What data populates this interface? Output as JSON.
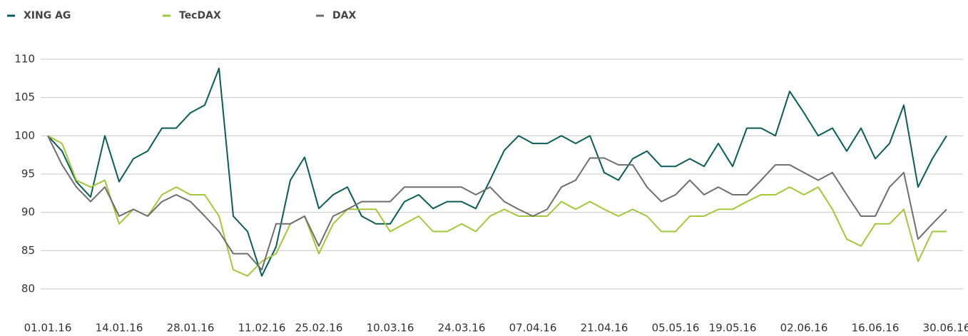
{
  "chart_data": {
    "type": "line",
    "categories": [
      "01.01.16",
      null,
      null,
      null,
      null,
      "14.01.16",
      null,
      null,
      null,
      null,
      "28.01.16",
      null,
      null,
      null,
      null,
      "11.02.16",
      null,
      null,
      null,
      "25.02.16",
      null,
      null,
      null,
      null,
      "10.03.16",
      null,
      null,
      null,
      null,
      "24.03.16",
      null,
      null,
      null,
      null,
      "07.04.16",
      null,
      null,
      null,
      null,
      "21.04.16",
      null,
      null,
      null,
      null,
      "05.05.16",
      null,
      null,
      null,
      "19.05.16",
      null,
      null,
      null,
      null,
      "02.06.16",
      null,
      null,
      null,
      null,
      "16.06.16",
      null,
      null,
      null,
      null,
      "30.06.16"
    ],
    "series": [
      {
        "name": "XING AG",
        "color": "#0b5c58",
        "values": [
          100,
          98,
          94,
          92,
          100,
          94,
          97,
          98,
          101,
          101,
          103,
          104,
          108.8,
          89.5,
          87.5,
          81.7,
          85.5,
          94.2,
          97.2,
          90.5,
          92.3,
          93.3,
          89.5,
          88.5,
          88.5,
          91.4,
          92.3,
          90.5,
          91.4,
          91.4,
          90.5,
          94.2,
          98.1,
          100,
          99,
          99,
          100,
          99,
          100,
          95.2,
          94.2,
          97,
          98,
          96,
          96,
          97,
          96,
          99,
          96,
          101,
          101,
          100,
          105.8,
          103,
          100,
          101,
          98,
          101,
          97,
          99,
          104,
          93.3,
          97,
          100
        ]
      },
      {
        "name": "TecDAX",
        "color": "#a2c73b",
        "values": [
          100,
          99,
          94.2,
          93.3,
          94.2,
          88.5,
          90.4,
          89.5,
          92.3,
          93.3,
          92.3,
          92.3,
          89.5,
          82.5,
          81.7,
          83.6,
          84.6,
          88.5,
          89.5,
          84.6,
          88.5,
          90.4,
          90.4,
          90.4,
          87.5,
          88.5,
          89.5,
          87.5,
          87.5,
          88.5,
          87.5,
          89.5,
          90.4,
          89.5,
          89.5,
          89.5,
          91.4,
          90.4,
          91.4,
          90.4,
          89.5,
          90.4,
          89.5,
          87.5,
          87.5,
          89.5,
          89.5,
          90.4,
          90.4,
          91.4,
          92.3,
          92.3,
          93.3,
          92.3,
          93.3,
          90.4,
          86.5,
          85.6,
          88.5,
          88.5,
          90.4,
          83.6,
          87.5,
          87.5
        ]
      },
      {
        "name": "DAX",
        "color": "#6e6e6e",
        "values": [
          100,
          96.2,
          93.3,
          91.4,
          93.3,
          89.5,
          90.4,
          89.5,
          91.4,
          92.3,
          91.4,
          89.5,
          87.5,
          84.6,
          84.6,
          82.5,
          88.5,
          88.5,
          89.5,
          85.6,
          89.5,
          90.4,
          91.4,
          91.4,
          91.4,
          93.3,
          93.3,
          93.3,
          93.3,
          93.3,
          92.3,
          93.3,
          91.4,
          90.4,
          89.5,
          90.4,
          93.3,
          94.2,
          97.1,
          97.1,
          96.2,
          96.2,
          93.3,
          91.4,
          92.3,
          94.2,
          92.3,
          93.3,
          92.3,
          92.3,
          94.2,
          96.2,
          96.2,
          95.2,
          94.2,
          95.2,
          92.3,
          89.5,
          89.5,
          93.3,
          95.2,
          86.5,
          88.5,
          90.4
        ]
      }
    ],
    "ylim": [
      80,
      110
    ],
    "yticks": [
      80,
      85,
      90,
      95,
      100,
      105,
      110
    ],
    "grid": true,
    "legend": "top"
  }
}
